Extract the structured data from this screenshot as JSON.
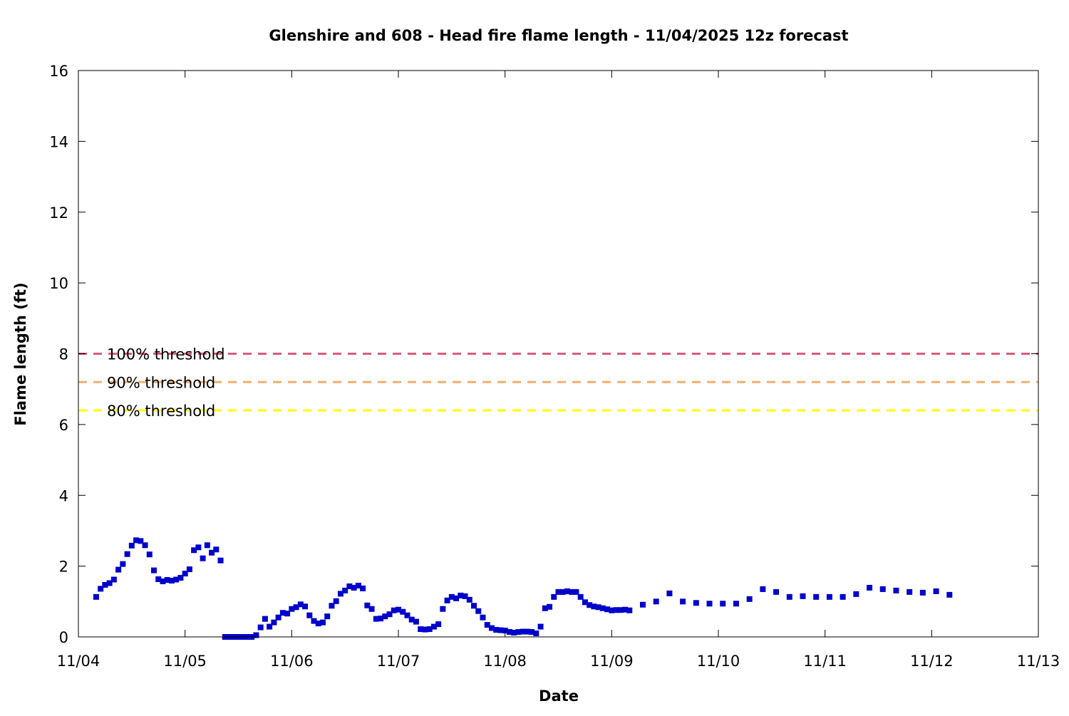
{
  "chart_data": {
    "type": "scatter",
    "title": "Glenshire and 608 - Head fire flame length - 11/04/2025 12z forecast",
    "xlabel": "Date",
    "ylabel": "Flame length (ft)",
    "x_ticks": [
      "11/04",
      "11/05",
      "11/06",
      "11/07",
      "11/08",
      "11/09",
      "11/10",
      "11/11",
      "11/12",
      "11/13"
    ],
    "y_ticks": [
      0,
      2,
      4,
      6,
      8,
      10,
      12,
      14,
      16
    ],
    "xlim": [
      "2025-11-04T00:00",
      "2025-11-13T00:00"
    ],
    "ylim": [
      0,
      16
    ],
    "grid": false,
    "colors": {
      "points": "#0000cc",
      "t100": "#d85c78",
      "t90": "#f0b070",
      "t80": "#ffff00"
    },
    "thresholds": [
      {
        "label": "100% threshold",
        "value": 8.0,
        "color": "#d85c78"
      },
      {
        "label": "90% threshold",
        "value": 7.2,
        "color": "#f0b070"
      },
      {
        "label": "80% threshold",
        "value": 6.4,
        "color": "#ffff00"
      }
    ],
    "series": [
      {
        "points": [
          [
            "2025-11-04T04:00",
            1.13
          ],
          [
            "2025-11-04T05:00",
            1.36
          ],
          [
            "2025-11-04T06:00",
            1.47
          ],
          [
            "2025-11-04T07:00",
            1.52
          ],
          [
            "2025-11-04T08:00",
            1.62
          ],
          [
            "2025-11-04T09:00",
            1.9
          ],
          [
            "2025-11-04T10:00",
            2.06
          ],
          [
            "2025-11-04T11:00",
            2.34
          ],
          [
            "2025-11-04T12:00",
            2.58
          ],
          [
            "2025-11-04T13:00",
            2.73
          ],
          [
            "2025-11-04T14:00",
            2.71
          ],
          [
            "2025-11-04T15:00",
            2.59
          ],
          [
            "2025-11-04T16:00",
            2.33
          ],
          [
            "2025-11-04T17:00",
            1.88
          ],
          [
            "2025-11-04T18:00",
            1.63
          ],
          [
            "2025-11-04T19:00",
            1.57
          ],
          [
            "2025-11-04T20:00",
            1.61
          ],
          [
            "2025-11-04T21:00",
            1.59
          ],
          [
            "2025-11-04T22:00",
            1.62
          ],
          [
            "2025-11-04T23:00",
            1.67
          ],
          [
            "2025-11-05T00:00",
            1.79
          ],
          [
            "2025-11-05T01:00",
            1.91
          ],
          [
            "2025-11-05T02:00",
            2.45
          ],
          [
            "2025-11-05T03:00",
            2.53
          ],
          [
            "2025-11-05T04:00",
            2.22
          ],
          [
            "2025-11-05T05:00",
            2.59
          ],
          [
            "2025-11-05T06:00",
            2.38
          ],
          [
            "2025-11-05T07:00",
            2.47
          ],
          [
            "2025-11-05T08:00",
            2.16
          ],
          [
            "2025-11-05T09:00",
            0.0
          ],
          [
            "2025-11-05T10:00",
            0.0
          ],
          [
            "2025-11-05T11:00",
            0.0
          ],
          [
            "2025-11-05T12:00",
            0.0
          ],
          [
            "2025-11-05T13:00",
            0.0
          ],
          [
            "2025-11-05T14:00",
            0.0
          ],
          [
            "2025-11-05T15:00",
            0.0
          ],
          [
            "2025-11-05T16:00",
            0.05
          ],
          [
            "2025-11-05T17:00",
            0.27
          ],
          [
            "2025-11-05T18:00",
            0.51
          ],
          [
            "2025-11-05T19:00",
            0.29
          ],
          [
            "2025-11-05T20:00",
            0.41
          ],
          [
            "2025-11-05T21:00",
            0.55
          ],
          [
            "2025-11-05T22:00",
            0.68
          ],
          [
            "2025-11-05T23:00",
            0.66
          ],
          [
            "2025-11-06T00:00",
            0.79
          ],
          [
            "2025-11-06T01:00",
            0.84
          ],
          [
            "2025-11-06T02:00",
            0.92
          ],
          [
            "2025-11-06T03:00",
            0.86
          ],
          [
            "2025-11-06T04:00",
            0.61
          ],
          [
            "2025-11-06T05:00",
            0.45
          ],
          [
            "2025-11-06T06:00",
            0.38
          ],
          [
            "2025-11-06T07:00",
            0.41
          ],
          [
            "2025-11-06T08:00",
            0.58
          ],
          [
            "2025-11-06T09:00",
            0.88
          ],
          [
            "2025-11-06T10:00",
            1.01
          ],
          [
            "2025-11-06T11:00",
            1.22
          ],
          [
            "2025-11-06T12:00",
            1.31
          ],
          [
            "2025-11-06T13:00",
            1.43
          ],
          [
            "2025-11-06T14:00",
            1.39
          ],
          [
            "2025-11-06T15:00",
            1.45
          ],
          [
            "2025-11-06T16:00",
            1.37
          ],
          [
            "2025-11-06T17:00",
            0.89
          ],
          [
            "2025-11-06T18:00",
            0.79
          ],
          [
            "2025-11-06T19:00",
            0.51
          ],
          [
            "2025-11-06T20:00",
            0.52
          ],
          [
            "2025-11-06T21:00",
            0.58
          ],
          [
            "2025-11-06T22:00",
            0.64
          ],
          [
            "2025-11-06T23:00",
            0.75
          ],
          [
            "2025-11-07T00:00",
            0.77
          ],
          [
            "2025-11-07T01:00",
            0.71
          ],
          [
            "2025-11-07T02:00",
            0.61
          ],
          [
            "2025-11-07T03:00",
            0.49
          ],
          [
            "2025-11-07T04:00",
            0.43
          ],
          [
            "2025-11-07T05:00",
            0.22
          ],
          [
            "2025-11-07T06:00",
            0.21
          ],
          [
            "2025-11-07T07:00",
            0.22
          ],
          [
            "2025-11-07T08:00",
            0.29
          ],
          [
            "2025-11-07T09:00",
            0.36
          ],
          [
            "2025-11-07T10:00",
            0.79
          ],
          [
            "2025-11-07T11:00",
            1.03
          ],
          [
            "2025-11-07T12:00",
            1.13
          ],
          [
            "2025-11-07T13:00",
            1.09
          ],
          [
            "2025-11-07T14:00",
            1.17
          ],
          [
            "2025-11-07T15:00",
            1.15
          ],
          [
            "2025-11-07T16:00",
            1.05
          ],
          [
            "2025-11-07T17:00",
            0.88
          ],
          [
            "2025-11-07T18:00",
            0.73
          ],
          [
            "2025-11-07T19:00",
            0.55
          ],
          [
            "2025-11-07T20:00",
            0.34
          ],
          [
            "2025-11-07T21:00",
            0.25
          ],
          [
            "2025-11-07T22:00",
            0.2
          ],
          [
            "2025-11-07T23:00",
            0.19
          ],
          [
            "2025-11-08T00:00",
            0.18
          ],
          [
            "2025-11-08T01:00",
            0.14
          ],
          [
            "2025-11-08T02:00",
            0.12
          ],
          [
            "2025-11-08T03:00",
            0.14
          ],
          [
            "2025-11-08T04:00",
            0.15
          ],
          [
            "2025-11-08T05:00",
            0.15
          ],
          [
            "2025-11-08T06:00",
            0.14
          ],
          [
            "2025-11-08T07:00",
            0.1
          ],
          [
            "2025-11-08T08:00",
            0.29
          ],
          [
            "2025-11-08T09:00",
            0.81
          ],
          [
            "2025-11-08T10:00",
            0.85
          ],
          [
            "2025-11-08T11:00",
            1.13
          ],
          [
            "2025-11-08T12:00",
            1.27
          ],
          [
            "2025-11-08T13:00",
            1.27
          ],
          [
            "2025-11-08T14:00",
            1.29
          ],
          [
            "2025-11-08T15:00",
            1.27
          ],
          [
            "2025-11-08T16:00",
            1.27
          ],
          [
            "2025-11-08T17:00",
            1.13
          ],
          [
            "2025-11-08T18:00",
            0.98
          ],
          [
            "2025-11-08T19:00",
            0.9
          ],
          [
            "2025-11-08T20:00",
            0.86
          ],
          [
            "2025-11-08T21:00",
            0.84
          ],
          [
            "2025-11-08T22:00",
            0.81
          ],
          [
            "2025-11-08T23:00",
            0.78
          ],
          [
            "2025-11-09T00:00",
            0.75
          ],
          [
            "2025-11-09T01:00",
            0.76
          ],
          [
            "2025-11-09T02:00",
            0.76
          ],
          [
            "2025-11-09T03:00",
            0.77
          ],
          [
            "2025-11-09T04:00",
            0.75
          ],
          [
            "2025-11-09T07:00",
            0.91
          ],
          [
            "2025-11-09T10:00",
            1.0
          ],
          [
            "2025-11-09T13:00",
            1.23
          ],
          [
            "2025-11-09T16:00",
            1.0
          ],
          [
            "2025-11-09T19:00",
            0.96
          ],
          [
            "2025-11-09T22:00",
            0.94
          ],
          [
            "2025-11-10T01:00",
            0.94
          ],
          [
            "2025-11-10T04:00",
            0.94
          ],
          [
            "2025-11-10T07:00",
            1.07
          ],
          [
            "2025-11-10T10:00",
            1.35
          ],
          [
            "2025-11-10T13:00",
            1.27
          ],
          [
            "2025-11-10T16:00",
            1.13
          ],
          [
            "2025-11-10T19:00",
            1.15
          ],
          [
            "2025-11-10T22:00",
            1.13
          ],
          [
            "2025-11-11T01:00",
            1.13
          ],
          [
            "2025-11-11T04:00",
            1.13
          ],
          [
            "2025-11-11T07:00",
            1.21
          ],
          [
            "2025-11-11T10:00",
            1.39
          ],
          [
            "2025-11-11T13:00",
            1.35
          ],
          [
            "2025-11-11T16:00",
            1.31
          ],
          [
            "2025-11-11T19:00",
            1.27
          ],
          [
            "2025-11-11T22:00",
            1.25
          ],
          [
            "2025-11-12T01:00",
            1.29
          ],
          [
            "2025-11-12T04:00",
            1.19
          ]
        ]
      }
    ]
  }
}
